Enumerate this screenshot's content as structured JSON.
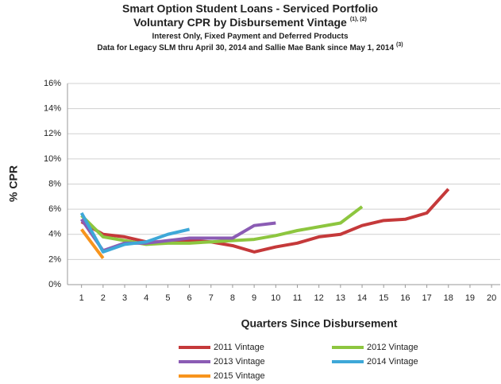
{
  "chart_data": {
    "type": "line",
    "title": "Smart Option Student Loans - Serviced Portfolio",
    "subtitle": "Voluntary CPR by Disbursement Vintage",
    "subtitle_note": "(1), (2)",
    "subtitle2": "Interest Only, Fixed Payment and Deferred Products",
    "subtitle3": "Data for Legacy SLM thru April 30, 2014 and Sallie Mae Bank since May 1, 2014",
    "subtitle3_note": "(3)",
    "x_label": "Quarters Since Disbursement",
    "y_label": "% CPR",
    "x": [
      1,
      2,
      3,
      4,
      5,
      6,
      7,
      8,
      9,
      10,
      11,
      12,
      13,
      14,
      15,
      16,
      17,
      18,
      19,
      20
    ],
    "xlim": [
      0.35,
      20.4
    ],
    "xticks": [
      1,
      2,
      3,
      4,
      5,
      6,
      7,
      8,
      9,
      10,
      11,
      12,
      13,
      14,
      15,
      16,
      17,
      18,
      19,
      20
    ],
    "ylim": [
      0,
      16
    ],
    "yticks": [
      {
        "value": 0,
        "label": "0%"
      },
      {
        "value": 2,
        "label": "2%"
      },
      {
        "value": 4,
        "label": "4%"
      },
      {
        "value": 6,
        "label": "6%"
      },
      {
        "value": 8,
        "label": "8%"
      },
      {
        "value": 10,
        "label": "10%"
      },
      {
        "value": 12,
        "label": "12%"
      },
      {
        "value": 14,
        "label": "14%"
      },
      {
        "value": 16,
        "label": "16%"
      }
    ],
    "grid": true,
    "series": [
      {
        "name": "2011 Vintage",
        "color": "#c5393a",
        "values": [
          5.0,
          4.0,
          3.8,
          3.4,
          3.4,
          3.5,
          3.4,
          3.1,
          2.6,
          3.0,
          3.3,
          3.8,
          4.0,
          4.7,
          5.1,
          5.2,
          5.7,
          7.6,
          null,
          null
        ]
      },
      {
        "name": "2012 Vintage",
        "color": "#8dc63f",
        "values": [
          5.5,
          3.8,
          3.5,
          3.2,
          3.3,
          3.3,
          3.4,
          3.5,
          3.6,
          3.9,
          4.3,
          4.6,
          4.9,
          6.2,
          null,
          null,
          null,
          null,
          null,
          null
        ]
      },
      {
        "name": "2013 Vintage",
        "color": "#8b5cb4",
        "values": [
          5.2,
          2.7,
          3.3,
          3.3,
          3.5,
          3.7,
          3.7,
          3.7,
          4.7,
          4.9,
          null,
          null,
          null,
          null,
          null,
          null,
          null,
          null,
          null,
          null
        ]
      },
      {
        "name": "2014 Vintage",
        "color": "#3ea8d8",
        "values": [
          5.7,
          2.6,
          3.2,
          3.4,
          4.0,
          4.4,
          null,
          null,
          null,
          null,
          null,
          null,
          null,
          null,
          null,
          null,
          null,
          null,
          null,
          null
        ]
      },
      {
        "name": "2015 Vintage",
        "color": "#f7941d",
        "values": [
          4.4,
          2.1,
          null,
          null,
          null,
          null,
          null,
          null,
          null,
          null,
          null,
          null,
          null,
          null,
          null,
          null,
          null,
          null,
          null,
          null
        ]
      }
    ]
  }
}
